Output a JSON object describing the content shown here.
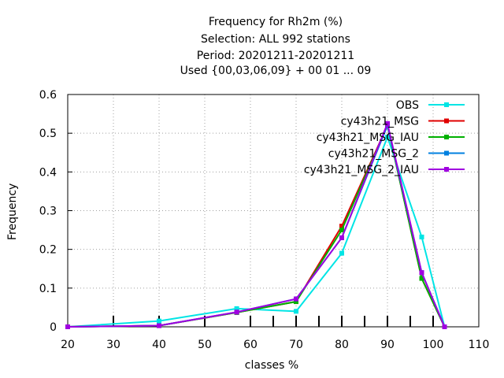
{
  "chart_data": {
    "type": "line",
    "title_lines": [
      "Frequency  for Rh2m (%)",
      "Selection: ALL    992 stations",
      "Period: 20201211-20201211",
      "Used {00,03,06,09} + 00 01 ... 09"
    ],
    "xlabel": "classes %",
    "ylabel": "Frequency",
    "xlim": [
      20,
      110
    ],
    "ylim": [
      0,
      0.6
    ],
    "xticks": [
      20,
      30,
      40,
      50,
      60,
      70,
      80,
      90,
      100,
      110
    ],
    "yticks": [
      0,
      0.1,
      0.2,
      0.3,
      0.4,
      0.5,
      0.6
    ],
    "ytick_labels": [
      "0",
      "0.1",
      "0.2",
      "0.3",
      "0.4",
      "0.5",
      "0.6"
    ],
    "inner_ticks_x": [
      30,
      40,
      50,
      60,
      65,
      70,
      75,
      80,
      85,
      90,
      95,
      100
    ],
    "grid": true,
    "legend_position": "top-right",
    "series": [
      {
        "name": "OBS",
        "color": "#00e5e5",
        "x": [
          20,
          40,
          57,
          70,
          80,
          90,
          97.5,
          102.5
        ],
        "y": [
          0.0,
          0.015,
          0.047,
          0.04,
          0.19,
          0.49,
          0.232,
          0.0
        ]
      },
      {
        "name": "cy43h21_MSG",
        "color": "#e00000",
        "x": [
          20,
          40,
          57,
          70,
          80,
          90,
          97.5,
          102.5
        ],
        "y": [
          0.0,
          0.003,
          0.037,
          0.065,
          0.26,
          0.52,
          0.125,
          0.0
        ]
      },
      {
        "name": "cy43h21_MSG_IAU",
        "color": "#00b000",
        "x": [
          20,
          40,
          57,
          70,
          80,
          90,
          97.5,
          102.5
        ],
        "y": [
          0.0,
          0.003,
          0.037,
          0.065,
          0.25,
          0.52,
          0.125,
          0.0
        ]
      },
      {
        "name": "cy43h21_MSG_2",
        "color": "#0080e0",
        "x": [
          20,
          40,
          57,
          70,
          80,
          90,
          97.5,
          102.5
        ],
        "y": [
          0.0,
          0.003,
          0.038,
          0.072,
          0.23,
          0.52,
          0.14,
          0.0
        ]
      },
      {
        "name": "cy43h21_MSG_2_IAU",
        "color": "#a000e0",
        "x": [
          20,
          40,
          57,
          70,
          80,
          90,
          97.5,
          102.5
        ],
        "y": [
          0.0,
          0.003,
          0.038,
          0.072,
          0.23,
          0.525,
          0.14,
          0.0
        ]
      }
    ]
  }
}
